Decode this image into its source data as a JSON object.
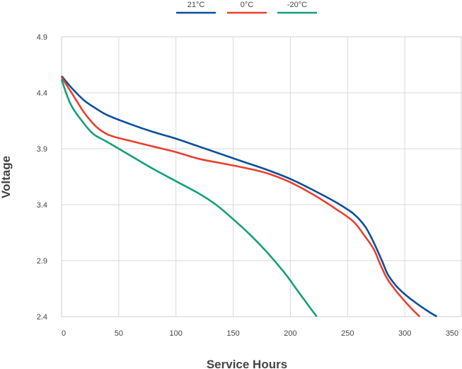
{
  "chart_data": {
    "type": "line",
    "title": "",
    "xlabel": "Service Hours",
    "ylabel": "Voltage",
    "xlim": [
      0,
      350
    ],
    "ylim": [
      2.4,
      4.9
    ],
    "x_ticks": [
      "0",
      "50",
      "100",
      "150",
      "200",
      "250",
      "300",
      "350"
    ],
    "y_ticks": [
      "2.4",
      "2.9",
      "3.4",
      "3.9",
      "4.4",
      "4.9"
    ],
    "x_tick_values": [
      0,
      50,
      100,
      150,
      200,
      250,
      300,
      350
    ],
    "y_tick_values": [
      2.4,
      2.9,
      3.4,
      3.9,
      4.4,
      4.9
    ],
    "grid": true,
    "legend_position": "top-center",
    "series": [
      {
        "name": "21°C",
        "color": "#0a4f9c",
        "points": [
          [
            0,
            4.55
          ],
          [
            10,
            4.43
          ],
          [
            20,
            4.33
          ],
          [
            30,
            4.26
          ],
          [
            40,
            4.2
          ],
          [
            60,
            4.12
          ],
          [
            80,
            4.05
          ],
          [
            100,
            3.99
          ],
          [
            120,
            3.92
          ],
          [
            140,
            3.85
          ],
          [
            160,
            3.78
          ],
          [
            180,
            3.71
          ],
          [
            200,
            3.63
          ],
          [
            220,
            3.53
          ],
          [
            240,
            3.42
          ],
          [
            255,
            3.32
          ],
          [
            265,
            3.21
          ],
          [
            272,
            3.08
          ],
          [
            280,
            2.9
          ],
          [
            285,
            2.78
          ],
          [
            292,
            2.68
          ],
          [
            300,
            2.6
          ],
          [
            310,
            2.52
          ],
          [
            320,
            2.45
          ],
          [
            328,
            2.4
          ]
        ]
      },
      {
        "name": "0°C",
        "color": "#e8402e",
        "points": [
          [
            0,
            4.54
          ],
          [
            10,
            4.38
          ],
          [
            20,
            4.22
          ],
          [
            30,
            4.1
          ],
          [
            38,
            4.04
          ],
          [
            45,
            4.01
          ],
          [
            60,
            3.97
          ],
          [
            80,
            3.92
          ],
          [
            100,
            3.87
          ],
          [
            120,
            3.81
          ],
          [
            140,
            3.77
          ],
          [
            160,
            3.73
          ],
          [
            180,
            3.68
          ],
          [
            200,
            3.6
          ],
          [
            220,
            3.49
          ],
          [
            240,
            3.36
          ],
          [
            255,
            3.25
          ],
          [
            265,
            3.12
          ],
          [
            273,
            3.0
          ],
          [
            278,
            2.88
          ],
          [
            284,
            2.75
          ],
          [
            290,
            2.66
          ],
          [
            298,
            2.56
          ],
          [
            306,
            2.47
          ],
          [
            313,
            2.4
          ]
        ]
      },
      {
        "name": "-20°C",
        "color": "#14a07a",
        "points": [
          [
            0,
            4.52
          ],
          [
            5,
            4.37
          ],
          [
            10,
            4.26
          ],
          [
            20,
            4.12
          ],
          [
            28,
            4.03
          ],
          [
            40,
            3.96
          ],
          [
            60,
            3.84
          ],
          [
            80,
            3.72
          ],
          [
            100,
            3.61
          ],
          [
            120,
            3.5
          ],
          [
            135,
            3.4
          ],
          [
            150,
            3.27
          ],
          [
            165,
            3.13
          ],
          [
            180,
            2.97
          ],
          [
            195,
            2.79
          ],
          [
            205,
            2.65
          ],
          [
            215,
            2.51
          ],
          [
            223,
            2.4
          ]
        ]
      }
    ]
  }
}
